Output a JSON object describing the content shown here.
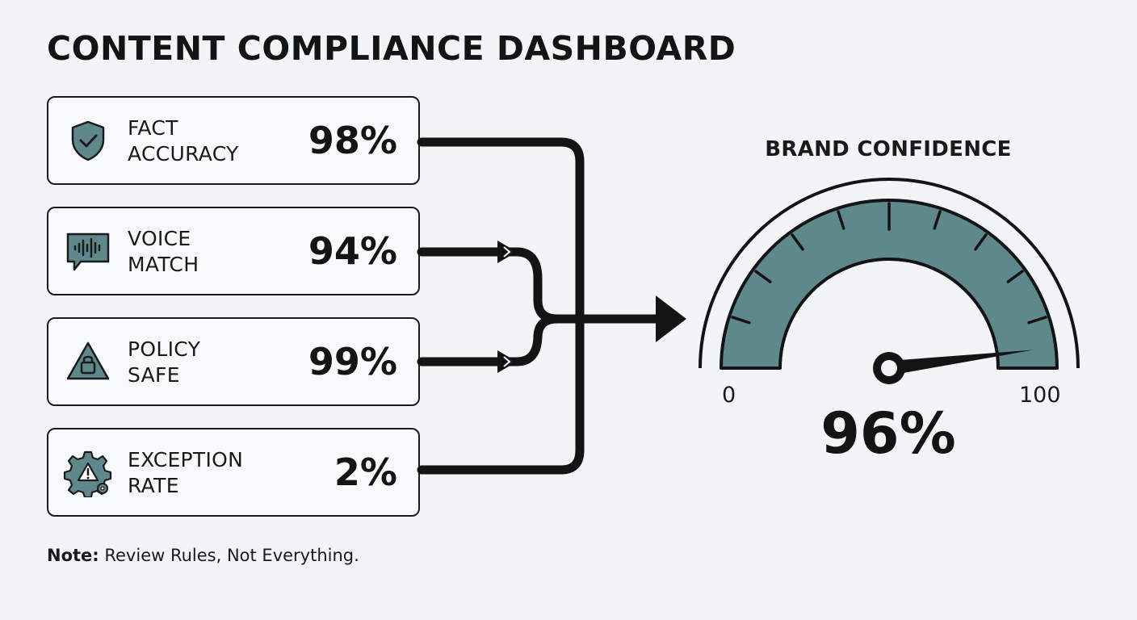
{
  "title": "CONTENT COMPLIANCE DASHBOARD",
  "metrics": [
    {
      "label_line1": "FACT",
      "label_line2": "ACCURACY",
      "value": "98%",
      "icon": "shield-check-icon"
    },
    {
      "label_line1": "VOICE",
      "label_line2": "MATCH",
      "value": "94%",
      "icon": "voice-waveform-icon"
    },
    {
      "label_line1": "POLICY",
      "label_line2": "SAFE",
      "value": "99%",
      "icon": "warning-lock-icon"
    },
    {
      "label_line1": "EXCEPTION",
      "label_line2": "RATE",
      "value": "2%",
      "icon": "gear-warning-icon"
    }
  ],
  "gauge": {
    "title": "BRAND CONFIDENCE",
    "min": "0",
    "max": "100",
    "value_text": "96%",
    "value": 96
  },
  "note": {
    "prefix": "Note:",
    "text": " Review Rules, Not Everything."
  },
  "colors": {
    "accent": "#5f888c",
    "ink": "#141414",
    "background": "#f1f5f8"
  }
}
